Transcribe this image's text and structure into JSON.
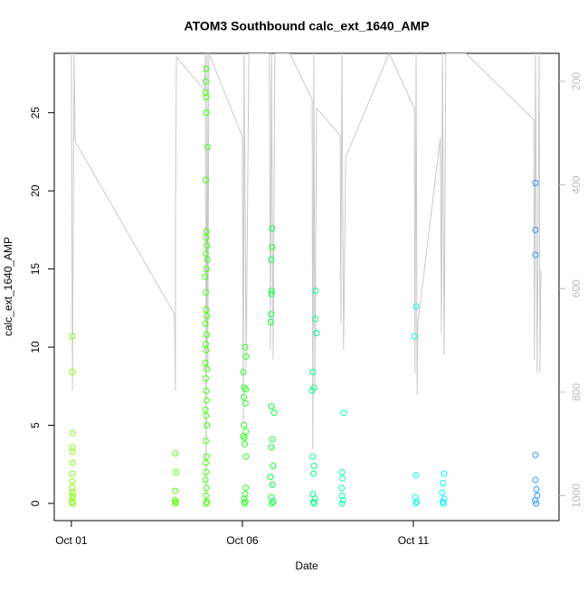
{
  "chart_data": {
    "type": "scatter",
    "title": "ATOM3 Southbound calc_ext_1640_AMP",
    "x_label": "Date",
    "y_label": "calc_ext_1640_AMP",
    "xlim": [
      0.5,
      15.26
    ],
    "xticks": [
      {
        "value": 1,
        "label": "Oct 01"
      },
      {
        "value": 6,
        "label": "Oct 06"
      },
      {
        "value": 11,
        "label": "Oct 11"
      }
    ],
    "ylim": [
      -1.1,
      28.8
    ],
    "yticks": [
      0,
      5,
      10,
      15,
      20,
      25
    ],
    "y2lim": [
      1048,
      146
    ],
    "y2ticks": [
      200,
      400,
      600,
      800,
      1000
    ],
    "series": [
      {
        "color": "#c8c8c8",
        "axis": "y2",
        "x": [
          1.0,
          1.03,
          1.08,
          1.11,
          4.02,
          4.04,
          4.04,
          4.07,
          4.89,
          4.92,
          4.94,
          4.97,
          4.99,
          5.02,
          6.0,
          6.03,
          6.05,
          6.11,
          6.19,
          6.79,
          6.82,
          6.85,
          6.9,
          6.95,
          7.38,
          8.04,
          8.06,
          8.09,
          8.12,
          8.17,
          8.86,
          8.88,
          8.91,
          8.96,
          9.02,
          10.29,
          11.03,
          11.05,
          11.08,
          11.11,
          11.13,
          11.79,
          11.82,
          11.85,
          11.9,
          11.95,
          12.53,
          14.52,
          14.54,
          14.57,
          14.62,
          14.68,
          14.7,
          14.73
        ],
        "values": [
          146,
          797,
          146,
          316,
          650,
          797,
          541,
          153,
          217,
          146,
          1014,
          146,
          754,
          146,
          307,
          858,
          146,
          754,
          146,
          146,
          719,
          146,
          737,
          146,
          146,
          235,
          910,
          146,
          789,
          252,
          304,
          668,
          146,
          719,
          347,
          146,
          252,
          763,
          146,
          806,
          668,
          309,
          685,
          146,
          728,
          146,
          146,
          274,
          737,
          146,
          763,
          146,
          763,
          564
        ]
      },
      {
        "color": "#7fff00",
        "x": [
          1.03,
          1.03,
          1.04,
          1.03,
          1.03,
          1.04,
          1.03,
          1.03,
          1.02,
          1.03,
          1.04,
          1.03,
          1.02,
          1.04
        ],
        "values": [
          10.7,
          8.4,
          4.5,
          3.6,
          3.3,
          2.6,
          1.9,
          1.4,
          1.0,
          0.7,
          0.5,
          0.3,
          0.1,
          0.0
        ]
      },
      {
        "color": "#4dff00",
        "x": [
          4.04,
          4.06,
          4.04,
          4.03,
          4.05,
          4.04
        ],
        "values": [
          3.2,
          2.0,
          0.8,
          0.2,
          0.1,
          0.0
        ]
      },
      {
        "color": "#40ff00",
        "x": [
          4.94,
          4.93,
          4.92,
          4.94,
          4.94,
          4.98,
          4.93,
          4.95,
          4.94,
          4.96,
          4.93,
          4.98,
          4.95,
          4.91,
          4.93,
          4.94,
          4.96,
          4.92,
          4.95,
          4.93,
          4.94,
          4.92,
          4.96,
          4.93,
          4.94,
          4.95,
          4.92,
          4.94,
          4.96,
          4.93,
          4.95,
          4.93,
          4.94,
          4.92,
          4.95,
          4.93,
          4.96,
          4.94
        ],
        "values": [
          27.8,
          27.0,
          26.3,
          26.0,
          25.0,
          22.8,
          20.7,
          17.4,
          17.0,
          16.5,
          16.0,
          15.6,
          15.0,
          14.5,
          13.5,
          12.4,
          12.0,
          11.5,
          10.8,
          10.2,
          9.8,
          9.0,
          8.6,
          8.0,
          7.2,
          6.6,
          6.0,
          5.6,
          5.0,
          4.0,
          3.0,
          2.6,
          2.0,
          1.5,
          1.0,
          0.5,
          0.1,
          0.0
        ]
      },
      {
        "color": "#26ff1a",
        "x": [
          6.08,
          6.11,
          6.03,
          6.05,
          6.1,
          6.04,
          6.09,
          6.05,
          6.1,
          6.03,
          6.06,
          6.07,
          6.1,
          6.1,
          6.08,
          6.05,
          6.09,
          6.06
        ],
        "values": [
          10.0,
          9.4,
          8.4,
          7.4,
          7.3,
          6.8,
          6.4,
          5.0,
          4.6,
          4.3,
          4.2,
          3.8,
          3.0,
          1.0,
          0.6,
          0.3,
          0.1,
          0.0
        ]
      },
      {
        "color": "#00ff3a",
        "x": [
          6.87,
          6.87,
          6.84,
          6.86,
          6.85,
          6.84,
          6.83,
          6.85,
          6.93,
          6.88,
          6.85,
          6.9,
          6.82,
          6.88,
          6.85,
          6.9,
          6.86
        ],
        "values": [
          17.6,
          16.4,
          15.6,
          13.6,
          13.4,
          12.1,
          11.6,
          6.2,
          5.8,
          4.1,
          3.6,
          2.4,
          1.7,
          1.2,
          0.4,
          0.1,
          0.0
        ]
      },
      {
        "color": "#00ff80",
        "x": [
          8.14,
          8.06,
          8.04,
          8.06,
          8.1,
          8.08,
          8.06,
          8.12,
          8.08,
          8.1,
          8.14,
          8.17,
          8.09
        ],
        "values": [
          13.6,
          8.4,
          7.2,
          3.0,
          2.4,
          1.9,
          0.6,
          0.3,
          0.1,
          0.0,
          11.8,
          10.9,
          7.4
        ]
      },
      {
        "color": "#00ffa8",
        "x": [
          8.96,
          8.91,
          8.93,
          8.9,
          8.92,
          8.94,
          8.91
        ],
        "values": [
          5.8,
          2.0,
          1.6,
          1.0,
          0.5,
          0.2,
          0.0
        ]
      },
      {
        "color": "#00ffe6",
        "x": [
          11.08,
          11.03,
          11.08,
          11.06,
          11.1,
          11.07
        ],
        "values": [
          12.6,
          10.7,
          1.8,
          0.4,
          0.1,
          0.0
        ]
      },
      {
        "color": "#00f5ff",
        "x": [
          11.9,
          11.87,
          11.84,
          11.9,
          11.86,
          11.88
        ],
        "values": [
          1.9,
          1.3,
          0.7,
          0.3,
          0.1,
          0.0
        ]
      },
      {
        "color": "#2299ff",
        "x": [
          14.57,
          14.57,
          14.57,
          14.57,
          14.57,
          14.6,
          14.62,
          14.56,
          14.59
        ],
        "values": [
          20.5,
          17.5,
          15.9,
          3.1,
          1.5,
          0.9,
          0.5,
          0.2,
          0.0
        ]
      }
    ]
  }
}
